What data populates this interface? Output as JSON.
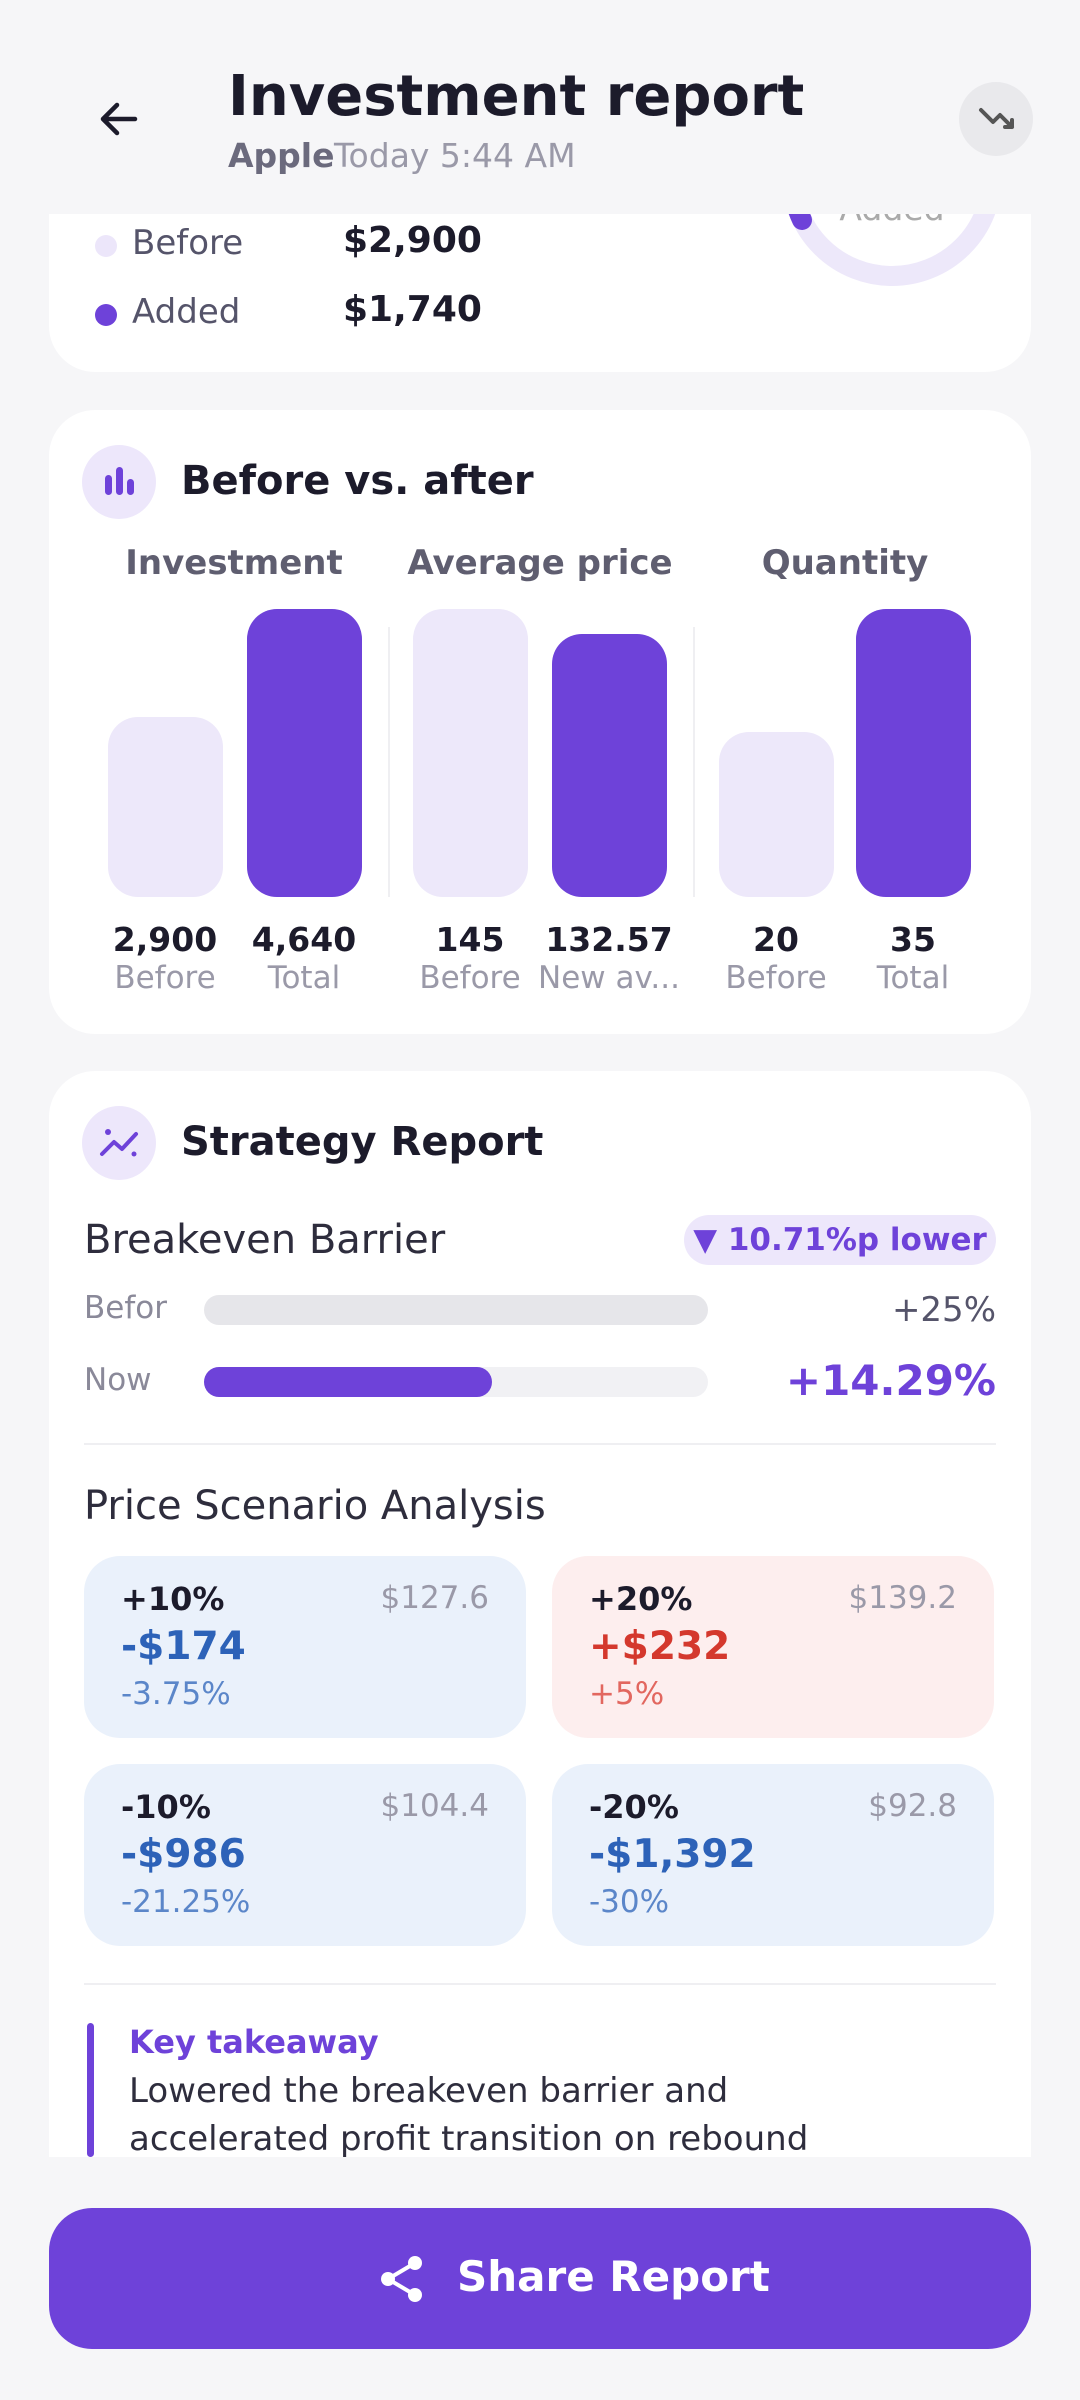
{
  "header": {
    "title": "Investment report",
    "stock": "Apple",
    "time": "Today 5:44 AM"
  },
  "summary": {
    "donut_label": "Added",
    "legend": [
      {
        "label": "Before",
        "value": "$2,900"
      },
      {
        "label": "Added",
        "value": "$1,740"
      }
    ]
  },
  "before_after": {
    "title": "Before vs. after",
    "groups": [
      {
        "title": "Investment",
        "bars": [
          {
            "value": 2900,
            "label": "2,900",
            "caption": "Before"
          },
          {
            "value": 4640,
            "label": "4,640",
            "caption": "Total"
          }
        ]
      },
      {
        "title": "Average price",
        "bars": [
          {
            "value": 145,
            "label": "145",
            "caption": "Before"
          },
          {
            "value": 132.57,
            "label": "132.57",
            "caption": "New av..."
          }
        ]
      },
      {
        "title": "Quantity",
        "bars": [
          {
            "value": 20,
            "label": "20",
            "caption": "Before"
          },
          {
            "value": 35,
            "label": "35",
            "caption": "Total"
          }
        ]
      }
    ]
  },
  "strategy": {
    "title": "Strategy Report",
    "breakeven_title": "Breakeven Barrier",
    "badge": "▼ 10.71%p lower",
    "rows": [
      {
        "label": "Befor",
        "value": 25,
        "value_label": "+25%"
      },
      {
        "label": "Now",
        "value": 14.29,
        "value_label": "+14.29%"
      }
    ],
    "scenario_title": "Price Scenario Analysis",
    "scenarios": [
      {
        "change": "+10%",
        "price": "$127.6",
        "amount": "-$174",
        "percent": "-3.75%"
      },
      {
        "change": "+20%",
        "price": "$139.2",
        "amount": "+$232",
        "percent": "+5%"
      },
      {
        "change": "-10%",
        "price": "$104.4",
        "amount": "-$986",
        "percent": "-21.25%"
      },
      {
        "change": "-20%",
        "price": "$92.8",
        "amount": "-$1,392",
        "percent": "-30%"
      }
    ],
    "takeaway_title": "Key takeaway",
    "takeaway_text": "Lowered the breakeven barrier and accelerated profit transition on rebound"
  },
  "share_button": "Share Report"
}
